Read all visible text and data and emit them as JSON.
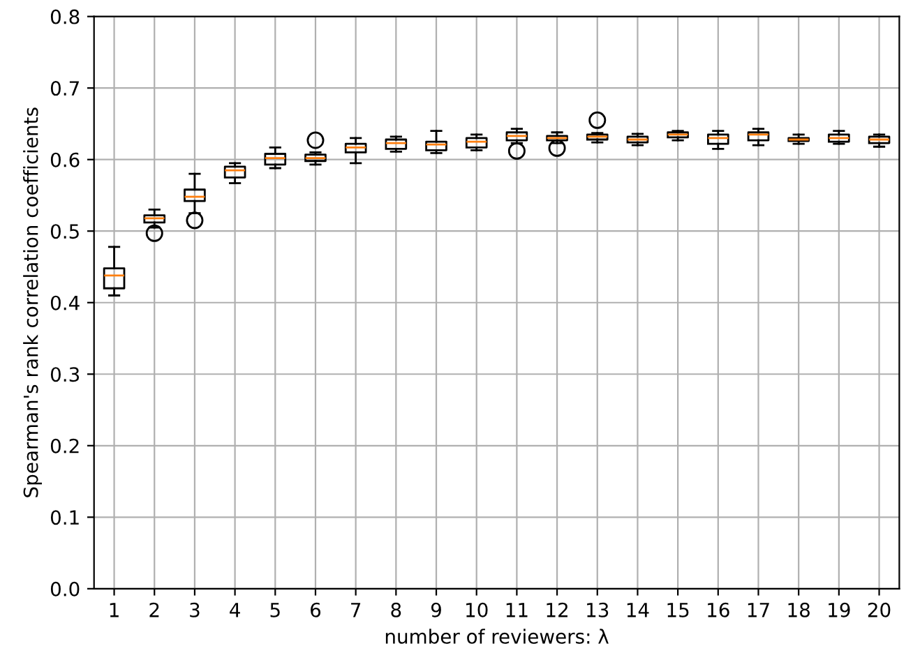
{
  "chart_data": {
    "type": "box",
    "xlabel": "number of reviewers: λ",
    "ylabel": "Spearman's rank correlation coefficients",
    "categories": [
      "1",
      "2",
      "3",
      "4",
      "5",
      "6",
      "7",
      "8",
      "9",
      "10",
      "11",
      "12",
      "13",
      "14",
      "15",
      "16",
      "17",
      "18",
      "19",
      "20"
    ],
    "ylim": [
      0.0,
      0.8
    ],
    "yticks": [
      {
        "value": 0,
        "label": "0.0"
      },
      {
        "value": 0.1,
        "label": "0.1"
      },
      {
        "value": 0.2,
        "label": "0.2"
      },
      {
        "value": 0.3,
        "label": "0.3"
      },
      {
        "value": 0.4,
        "label": "0.4"
      },
      {
        "value": 0.5,
        "label": "0.5"
      },
      {
        "value": 0.6,
        "label": "0.6"
      },
      {
        "value": 0.7,
        "label": "0.7"
      },
      {
        "value": 0.8,
        "label": "0.8"
      }
    ],
    "grid": true,
    "boxes": [
      {
        "low": 0.41,
        "q1": 0.42,
        "median": 0.438,
        "q3": 0.448,
        "high": 0.478
      },
      {
        "low": 0.505,
        "q1": 0.512,
        "median": 0.518,
        "q3": 0.522,
        "high": 0.53,
        "outliers": [
          0.497
        ]
      },
      {
        "low": 0.525,
        "q1": 0.542,
        "median": 0.548,
        "q3": 0.558,
        "high": 0.58,
        "outliers": [
          0.515
        ]
      },
      {
        "low": 0.567,
        "q1": 0.575,
        "median": 0.585,
        "q3": 0.59,
        "high": 0.595
      },
      {
        "low": 0.588,
        "q1": 0.593,
        "median": 0.602,
        "q3": 0.608,
        "high": 0.617
      },
      {
        "low": 0.593,
        "q1": 0.598,
        "median": 0.602,
        "q3": 0.607,
        "high": 0.61,
        "outliers": [
          0.627
        ]
      },
      {
        "low": 0.595,
        "q1": 0.61,
        "median": 0.617,
        "q3": 0.622,
        "high": 0.63
      },
      {
        "low": 0.611,
        "q1": 0.615,
        "median": 0.623,
        "q3": 0.628,
        "high": 0.632
      },
      {
        "low": 0.609,
        "q1": 0.613,
        "median": 0.621,
        "q3": 0.625,
        "high": 0.64
      },
      {
        "low": 0.613,
        "q1": 0.617,
        "median": 0.625,
        "q3": 0.63,
        "high": 0.635
      },
      {
        "low": 0.623,
        "q1": 0.627,
        "median": 0.633,
        "q3": 0.638,
        "high": 0.643,
        "outliers": [
          0.612
        ]
      },
      {
        "low": 0.623,
        "q1": 0.627,
        "median": 0.63,
        "q3": 0.633,
        "high": 0.638,
        "outliers": [
          0.616
        ]
      },
      {
        "low": 0.624,
        "q1": 0.628,
        "median": 0.632,
        "q3": 0.635,
        "high": 0.637,
        "outliers": [
          0.655
        ]
      },
      {
        "low": 0.62,
        "q1": 0.624,
        "median": 0.628,
        "q3": 0.632,
        "high": 0.636
      },
      {
        "low": 0.627,
        "q1": 0.631,
        "median": 0.635,
        "q3": 0.638,
        "high": 0.64
      },
      {
        "low": 0.615,
        "q1": 0.622,
        "median": 0.63,
        "q3": 0.635,
        "high": 0.64
      },
      {
        "low": 0.62,
        "q1": 0.627,
        "median": 0.635,
        "q3": 0.638,
        "high": 0.643
      },
      {
        "low": 0.622,
        "q1": 0.626,
        "median": 0.628,
        "q3": 0.63,
        "high": 0.635
      },
      {
        "low": 0.622,
        "q1": 0.625,
        "median": 0.63,
        "q3": 0.635,
        "high": 0.64
      },
      {
        "low": 0.618,
        "q1": 0.623,
        "median": 0.628,
        "q3": 0.632,
        "high": 0.635
      }
    ]
  }
}
